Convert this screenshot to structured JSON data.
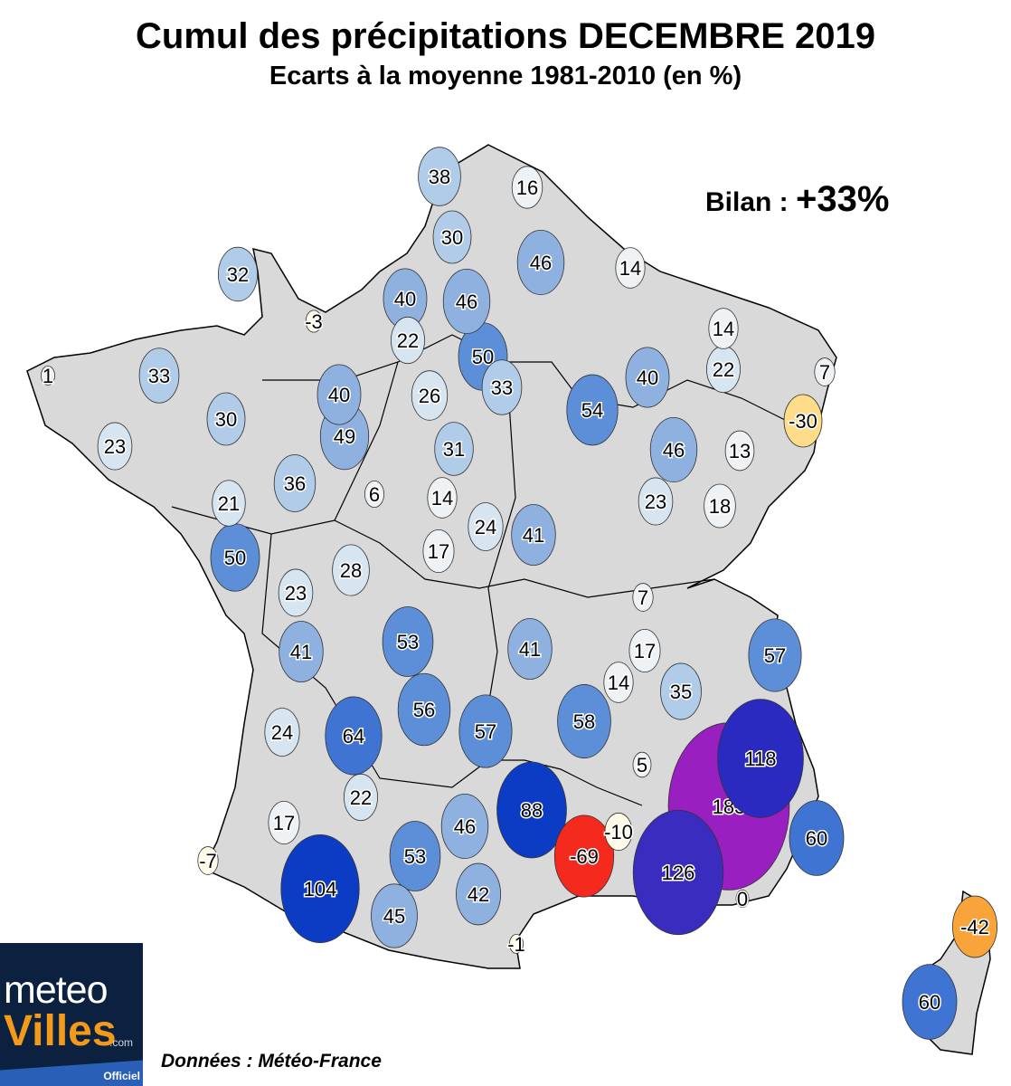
{
  "title": "Cumul des précipitations DECEMBRE 2019",
  "subtitle": "Ecarts à la moyenne 1981-2010 (en %)",
  "bilan": {
    "label": "Bilan :",
    "value": "+33%"
  },
  "source": "Données : Météo-France",
  "logo": {
    "line1": "meteo",
    "line2": "Villes",
    "suffix": ".com",
    "tag": "Officiel"
  },
  "colors": {
    "land": "#d9d9d9",
    "deficit_strong": "#f52a1e",
    "deficit_medium": "#f9a43a",
    "deficit_light": "#fddc8a",
    "surplus_extreme": "#9a1fc0"
  },
  "stations": [
    38,
    16,
    30,
    46,
    14,
    32,
    40,
    46,
    -3,
    22,
    50,
    14,
    22,
    7,
    1,
    33,
    40,
    33,
    26,
    40,
    54,
    30,
    -30,
    49,
    31,
    46,
    13,
    23,
    36,
    6,
    14,
    21,
    24,
    41,
    23,
    18,
    17,
    50,
    28,
    23,
    7,
    41,
    53,
    41,
    17,
    57,
    14,
    35,
    24,
    64,
    56,
    57,
    58,
    5,
    118,
    183,
    22,
    17,
    88,
    -10,
    46,
    53,
    60,
    -69,
    126,
    -7,
    104,
    42,
    45,
    0,
    -1,
    -42,
    60
  ]
}
